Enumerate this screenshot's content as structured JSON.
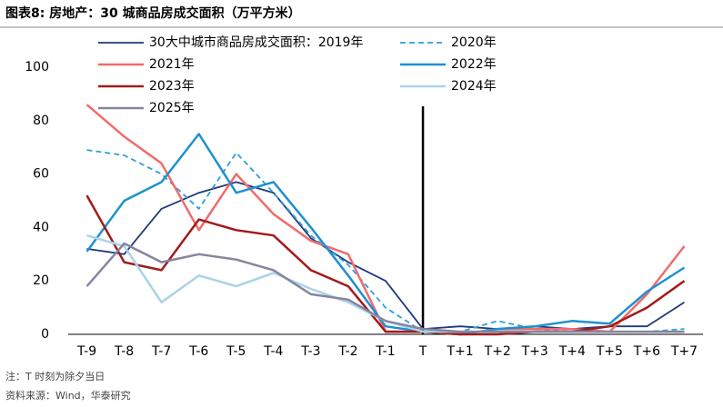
{
  "chart_data": {
    "type": "line",
    "title": "图表8:  房地产：30 城商品房成交面积（万平方米）",
    "notes": [
      "注：T 时刻为除夕当日",
      "资料来源：Wind，华泰研究"
    ],
    "categories": [
      "T-9",
      "T-8",
      "T-7",
      "T-6",
      "T-5",
      "T-4",
      "T-3",
      "T-2",
      "T-1",
      "T",
      "T+1",
      "T+2",
      "T+3",
      "T+4",
      "T+5",
      "T+6",
      "T+7"
    ],
    "ylim": [
      0,
      100
    ],
    "yticks": [
      0,
      20,
      40,
      60,
      80,
      100
    ],
    "grid": false,
    "series": [
      {
        "name": "30大中城市商品房成交面积：2019年",
        "color": "#1f3a7a",
        "width": 1.8,
        "dashed": false,
        "values": [
          32,
          30,
          47,
          53,
          57,
          53,
          36,
          27,
          20,
          2,
          3,
          2,
          3,
          2,
          3,
          3,
          12
        ]
      },
      {
        "name": "2020年",
        "color": "#2e9fd8",
        "width": 1.8,
        "dashed": true,
        "values": [
          69,
          67,
          60,
          47,
          68,
          53,
          37,
          26,
          10,
          1,
          1,
          5,
          2,
          1,
          1,
          1,
          2
        ]
      },
      {
        "name": "2021年",
        "color": "#f26b6b",
        "width": 2.5,
        "dashed": false,
        "values": [
          86,
          74,
          64,
          39,
          60,
          45,
          35,
          30,
          1,
          1,
          0,
          2,
          2,
          2,
          1,
          15,
          33
        ]
      },
      {
        "name": "2022年",
        "color": "#1e90d0",
        "width": 2.5,
        "dashed": false,
        "values": [
          31,
          50,
          57,
          75,
          53,
          57,
          40,
          22,
          3,
          1,
          0,
          2,
          3,
          5,
          4,
          16,
          25
        ]
      },
      {
        "name": "2023年",
        "color": "#a31b1b",
        "width": 2.5,
        "dashed": false,
        "values": [
          52,
          27,
          24,
          43,
          39,
          37,
          24,
          18,
          1,
          1,
          0,
          0,
          1,
          1,
          3,
          10,
          20
        ]
      },
      {
        "name": "2024年",
        "color": "#a8d4e6",
        "width": 2.5,
        "dashed": false,
        "values": [
          37,
          33,
          12,
          22,
          18,
          23,
          17,
          12,
          5,
          1,
          1,
          1,
          1,
          1,
          1,
          1,
          1
        ]
      },
      {
        "name": "2025年",
        "color": "#8585a0",
        "width": 2.5,
        "dashed": false,
        "values": [
          18,
          34,
          27,
          30,
          28,
          24,
          15,
          13,
          5,
          2,
          1,
          1,
          1,
          1,
          1,
          1,
          1
        ]
      }
    ]
  }
}
